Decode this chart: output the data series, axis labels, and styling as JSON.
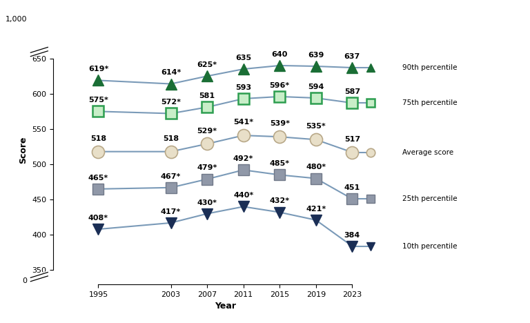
{
  "years": [
    1995,
    2003,
    2007,
    2011,
    2015,
    2019,
    2023
  ],
  "p90": [
    619,
    614,
    625,
    635,
    640,
    639,
    637
  ],
  "p75": [
    575,
    572,
    581,
    593,
    596,
    594,
    587
  ],
  "avg": [
    518,
    518,
    529,
    541,
    539,
    535,
    517
  ],
  "p25": [
    465,
    467,
    479,
    492,
    485,
    480,
    451
  ],
  "p10": [
    408,
    417,
    430,
    440,
    432,
    421,
    384
  ],
  "p90_labels": [
    "619*",
    "614*",
    "625*",
    "635",
    "640",
    "639",
    "637"
  ],
  "p75_labels": [
    "575*",
    "572*",
    "581",
    "593",
    "596*",
    "594",
    "587"
  ],
  "avg_labels": [
    "518",
    "518",
    "529*",
    "541*",
    "539*",
    "535*",
    "517"
  ],
  "p25_labels": [
    "465*",
    "467*",
    "479*",
    "492*",
    "485*",
    "480*",
    "451"
  ],
  "p10_labels": [
    "408*",
    "417*",
    "430*",
    "440*",
    "432*",
    "421*",
    "384"
  ],
  "color_p90": "#1a6e35",
  "color_p75_face": "#c8eec8",
  "color_p75_edge": "#2d9e50",
  "color_avg_face": "#e8dfc8",
  "color_avg_edge": "#b8a888",
  "color_p25_face": "#9098a8",
  "color_p25_edge": "#707888",
  "color_p10": "#1a2e55",
  "line_color": "#7a9ab8",
  "background": "#ffffff",
  "ylabel": "Score",
  "xlabel": "Year",
  "label_fontsize": 8
}
